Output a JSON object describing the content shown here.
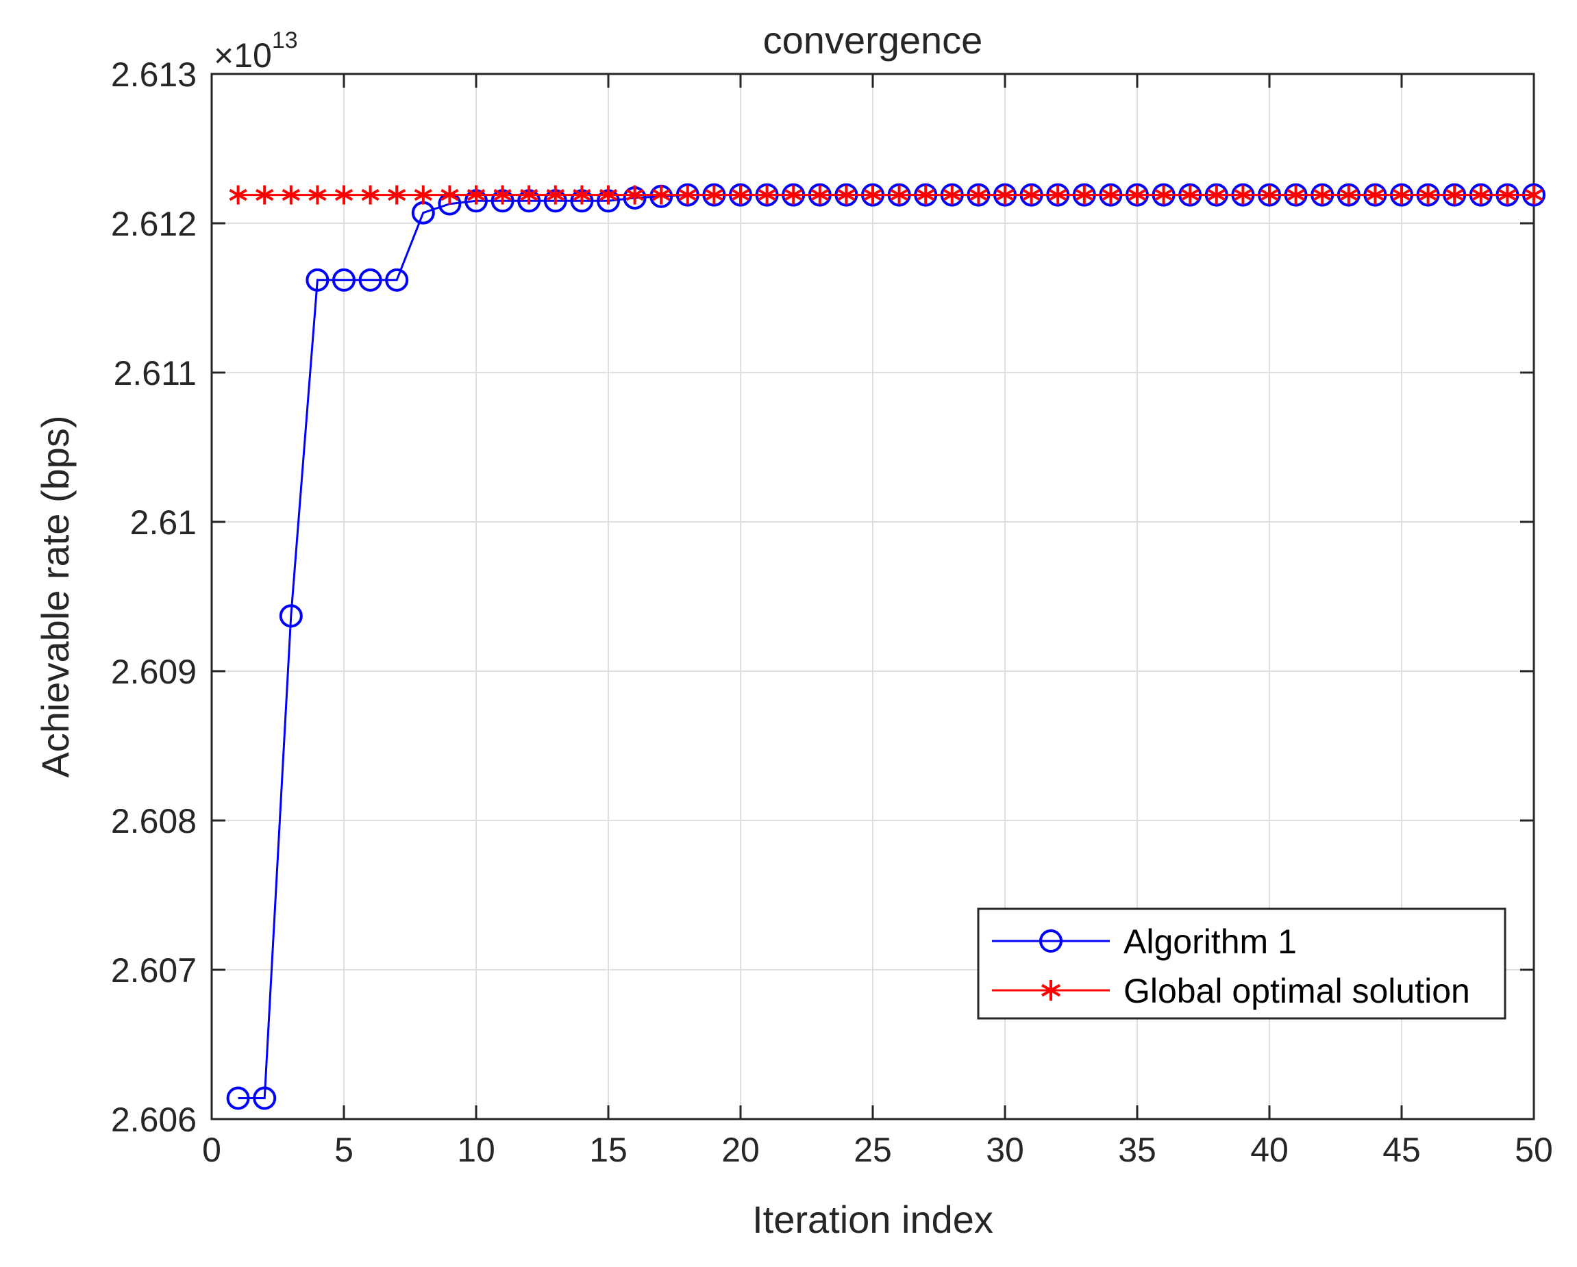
{
  "chart_data": {
    "type": "line",
    "title": "convergence",
    "xlabel": "Iteration index",
    "ylabel": "Achievable rate (bps)",
    "y_multiplier": {
      "base": "×10",
      "exponent": "13"
    },
    "xlim": [
      0,
      50
    ],
    "ylim": [
      2.606,
      2.613
    ],
    "xticks": [
      0,
      5,
      10,
      15,
      20,
      25,
      30,
      35,
      40,
      45,
      50
    ],
    "xtick_labels": [
      "0",
      "5",
      "10",
      "15",
      "20",
      "25",
      "30",
      "35",
      "40",
      "45",
      "50"
    ],
    "yticks": [
      2.606,
      2.607,
      2.608,
      2.609,
      2.61,
      2.611,
      2.612,
      2.613
    ],
    "ytick_labels": [
      "2.606",
      "2.607",
      "2.608",
      "2.609",
      "2.61",
      "2.611",
      "2.612",
      "2.613"
    ],
    "grid": true,
    "legend_position": "bottom-right",
    "x": [
      1,
      2,
      3,
      4,
      5,
      6,
      7,
      8,
      9,
      10,
      11,
      12,
      13,
      14,
      15,
      16,
      17,
      18,
      19,
      20,
      21,
      22,
      23,
      24,
      25,
      26,
      27,
      28,
      29,
      30,
      31,
      32,
      33,
      34,
      35,
      36,
      37,
      38,
      39,
      40,
      41,
      42,
      43,
      44,
      45,
      46,
      47,
      48,
      49,
      50
    ],
    "series": [
      {
        "name": "Algorithm 1",
        "color": "#0000ff",
        "marker": "circle",
        "values": [
          2.60614,
          2.60614,
          2.60937,
          2.61162,
          2.61162,
          2.61162,
          2.61162,
          2.61207,
          2.61213,
          2.61215,
          2.61215,
          2.61215,
          2.61215,
          2.61215,
          2.61215,
          2.61217,
          2.61218,
          2.61219,
          2.61219,
          2.61219,
          2.61219,
          2.61219,
          2.61219,
          2.61219,
          2.61219,
          2.61219,
          2.61219,
          2.61219,
          2.61219,
          2.61219,
          2.61219,
          2.61219,
          2.61219,
          2.61219,
          2.61219,
          2.61219,
          2.61219,
          2.61219,
          2.61219,
          2.61219,
          2.61219,
          2.61219,
          2.61219,
          2.61219,
          2.61219,
          2.61219,
          2.61219,
          2.61219,
          2.61219,
          2.61219
        ]
      },
      {
        "name": "Global optimal solution",
        "color": "#ff0000",
        "marker": "asterisk",
        "values": [
          2.61219,
          2.61219,
          2.61219,
          2.61219,
          2.61219,
          2.61219,
          2.61219,
          2.61219,
          2.61219,
          2.61219,
          2.61219,
          2.61219,
          2.61219,
          2.61219,
          2.61219,
          2.61219,
          2.61219,
          2.61219,
          2.61219,
          2.61219,
          2.61219,
          2.61219,
          2.61219,
          2.61219,
          2.61219,
          2.61219,
          2.61219,
          2.61219,
          2.61219,
          2.61219,
          2.61219,
          2.61219,
          2.61219,
          2.61219,
          2.61219,
          2.61219,
          2.61219,
          2.61219,
          2.61219,
          2.61219,
          2.61219,
          2.61219,
          2.61219,
          2.61219,
          2.61219,
          2.61219,
          2.61219,
          2.61219,
          2.61219,
          2.61219
        ]
      }
    ]
  }
}
